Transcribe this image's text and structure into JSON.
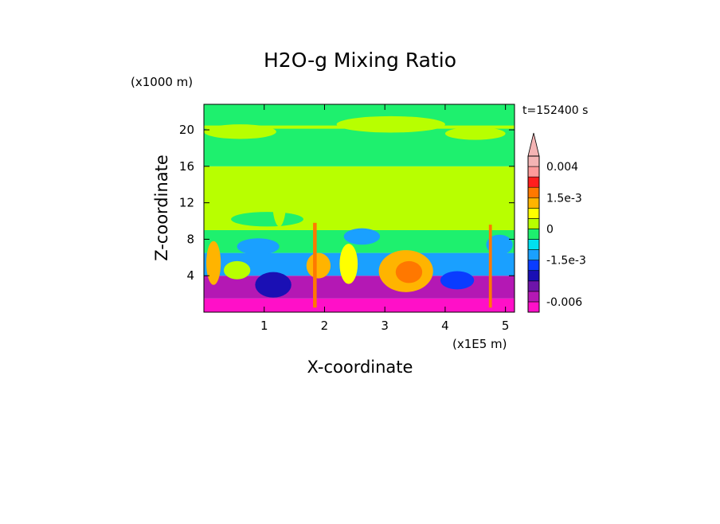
{
  "chart_data": {
    "type": "heatmap",
    "title": "H2O-g Mixing Ratio",
    "xlabel": "X-coordinate",
    "ylabel": "Z-coordinate",
    "x_unit": "(x1E5 m)",
    "y_unit": "(x1000 m)",
    "time_label": "t=152400 s",
    "xlim": [
      0,
      5.15
    ],
    "ylim": [
      0,
      22.8
    ],
    "x_ticks": [
      1,
      2,
      3,
      4,
      5
    ],
    "y_ticks": [
      4,
      8,
      12,
      16,
      20
    ],
    "x_tick_labels": [
      "1",
      "2",
      "3",
      "4",
      "5"
    ],
    "y_tick_labels": [
      "4",
      "8",
      "12",
      "16",
      "20"
    ],
    "colorbar": {
      "levels": [
        -0.008,
        -0.006,
        -0.004,
        -0.0025,
        -0.002,
        -0.0015,
        -0.001,
        -0.0005,
        0,
        0.0005,
        0.001,
        0.0015,
        0.002,
        0.003,
        0.004
      ],
      "colors": [
        "#ff10c8",
        "#b418b4",
        "#6e14aa",
        "#1a0fb4",
        "#0a3cff",
        "#1aa0ff",
        "#00e0f0",
        "#1ef06e",
        "#b8ff00",
        "#ffff00",
        "#ffb400",
        "#ff7800",
        "#ff1e1e",
        "#ff9a9a",
        "#f4b4b4"
      ],
      "labels": [
        "0.004",
        "1.5e-3",
        "0",
        "-1.5e-3",
        "-0.006"
      ],
      "label_values": [
        0.004,
        0.0015,
        0,
        -0.0015,
        -0.006
      ],
      "extend": "max"
    },
    "field_bands": [
      {
        "z_from": 0,
        "z_to": 1.5,
        "value": -0.0063
      },
      {
        "z_from": 1.5,
        "z_to": 4,
        "value": -0.0045
      },
      {
        "z_from": 4,
        "z_to": 6.5,
        "value": -0.0015
      },
      {
        "z_from": 6.5,
        "z_to": 9,
        "value": -0.0005
      },
      {
        "z_from": 9,
        "z_to": 16,
        "value": 0.0002
      },
      {
        "z_from": 16,
        "z_to": 19,
        "value": -0.0002
      },
      {
        "z_from": 19,
        "z_to": 22.8,
        "value": -0.0003
      }
    ],
    "field_patches": [
      {
        "x": 3.35,
        "z": 4.5,
        "rx": 0.45,
        "rz": 2.3,
        "value": 0.0013
      },
      {
        "x": 3.4,
        "z": 4.4,
        "rx": 0.22,
        "rz": 1.2,
        "value": 0.0018
      },
      {
        "x": 0.16,
        "z": 5.4,
        "rx": 0.12,
        "rz": 2.4,
        "value": 0.0013
      },
      {
        "x": 2.4,
        "z": 5.3,
        "rx": 0.15,
        "rz": 2.2,
        "value": 0.0008
      },
      {
        "x": 1.9,
        "z": 5.1,
        "rx": 0.2,
        "rz": 1.4,
        "value": 0.0011
      },
      {
        "x": 0.55,
        "z": 4.6,
        "rx": 0.22,
        "rz": 1.0,
        "value": 0.0003
      },
      {
        "x": 1.15,
        "z": 3.0,
        "rx": 0.3,
        "rz": 1.4,
        "value": -0.0022
      },
      {
        "x": 4.2,
        "z": 3.5,
        "rx": 0.28,
        "rz": 1.0,
        "value": -0.0018
      },
      {
        "x": 2.62,
        "z": 8.3,
        "rx": 0.3,
        "rz": 0.9,
        "value": -0.0012
      },
      {
        "x": 0.9,
        "z": 7.2,
        "rx": 0.35,
        "rz": 0.9,
        "value": -0.0012
      },
      {
        "x": 4.9,
        "z": 7.4,
        "rx": 0.22,
        "rz": 1.1,
        "value": -0.0012
      },
      {
        "x": 1.05,
        "z": 10.2,
        "rx": 0.6,
        "rz": 0.8,
        "value": -0.0003
      },
      {
        "x": 0.6,
        "z": 19.8,
        "rx": 0.6,
        "rz": 0.8,
        "value": 0.0002
      },
      {
        "x": 3.1,
        "z": 20.6,
        "rx": 0.9,
        "rz": 0.9,
        "value": 0.0002
      },
      {
        "x": 4.5,
        "z": 19.6,
        "rx": 0.5,
        "rz": 0.7,
        "value": 0.0002
      },
      {
        "x": 1.25,
        "z": 12.6,
        "rx": 0.12,
        "rz": 3.2,
        "value": 0.0002
      },
      {
        "x": 1.6,
        "z": 13.8,
        "rx": 0.3,
        "rz": 1.8,
        "value": 0.0002
      }
    ],
    "field_lines": [
      {
        "x": 1.84,
        "z_from": 0.5,
        "z_to": 9.8,
        "width": 0.06,
        "value": 0.0016
      },
      {
        "x": 4.75,
        "z_from": 0.5,
        "z_to": 9.6,
        "width": 0.05,
        "value": 0.0016
      },
      {
        "z": 20.3,
        "x_from": 0,
        "x_to": 5.15,
        "height": 0.35,
        "value": 0.0002
      },
      {
        "z": 0.3,
        "x_from": 0.05,
        "x_to": 5.1,
        "height": 0.25,
        "value": -0.0075
      }
    ]
  }
}
